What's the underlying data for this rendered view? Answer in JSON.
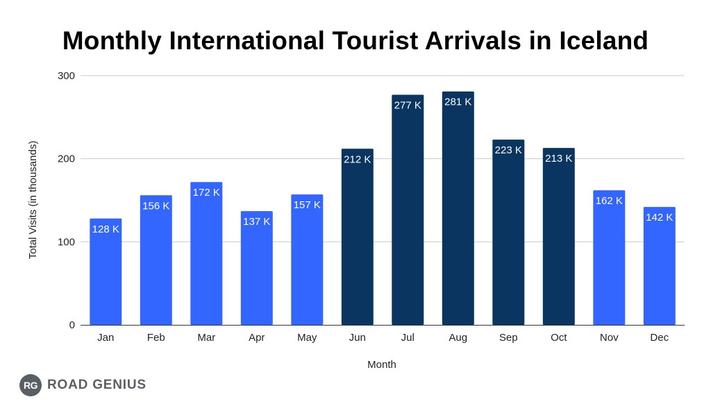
{
  "chart_data": {
    "type": "bar",
    "title": "Monthly International Tourist Arrivals in Iceland",
    "xlabel": "Month",
    "ylabel": "Total Visits (in thousands)",
    "categories": [
      "Jan",
      "Feb",
      "Mar",
      "Apr",
      "May",
      "Jun",
      "Jul",
      "Aug",
      "Sep",
      "Oct",
      "Nov",
      "Dec"
    ],
    "values": [
      128,
      156,
      172,
      137,
      157,
      212,
      277,
      281,
      223,
      213,
      162,
      142
    ],
    "data_labels": [
      "128 K",
      "156 K",
      "172 K",
      "137 K",
      "157 K",
      "212 K",
      "277 K",
      "281 K",
      "223 K",
      "213 K",
      "162 K",
      "142 K"
    ],
    "ylim": [
      0,
      300
    ],
    "yticks": [
      0,
      100,
      200,
      300
    ],
    "grid": true,
    "bar_colors": [
      "#3366ff",
      "#3366ff",
      "#3366ff",
      "#3366ff",
      "#3366ff",
      "#0b3561",
      "#0b3561",
      "#0b3561",
      "#0b3561",
      "#0b3561",
      "#3366ff",
      "#3366ff"
    ]
  },
  "branding": {
    "badge_text": "RG",
    "name": "ROAD GENIUS"
  }
}
